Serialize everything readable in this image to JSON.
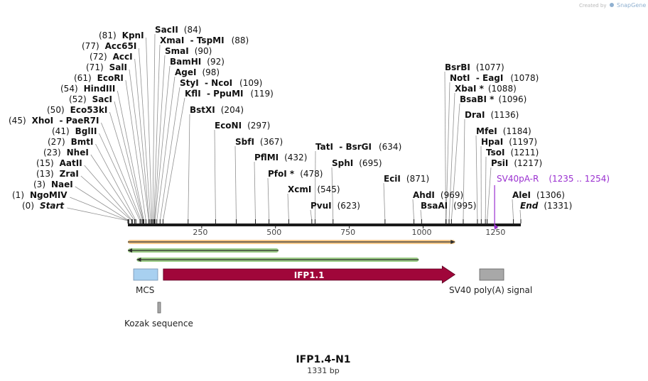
{
  "watermark": {
    "created_by": "Created by",
    "brand": "SnapGene"
  },
  "sequence_name": "IFP1.4-N1",
  "sequence_length": "1331 bp",
  "colors": {
    "backbone": "#1a1a1a",
    "orf_orange": "#f0a030",
    "orf_green": "#48a020",
    "ifp": "#a0063a",
    "mcs": "#a8d0f0",
    "polyA": "#a8a8a8",
    "kozak": "#a8a8a8",
    "primer": "#9a30d0"
  },
  "axis": {
    "min": 0,
    "max": 1331,
    "ticks": [
      {
        "value": 250,
        "label": "250"
      },
      {
        "value": 500,
        "label": "500"
      },
      {
        "value": 750,
        "label": "750"
      },
      {
        "value": 1000,
        "label": "1000"
      },
      {
        "value": 1250,
        "label": "1250"
      }
    ]
  },
  "sites": [
    {
      "name": "KpnI",
      "pos": "(81)"
    },
    {
      "name": "Acc65I",
      "pos": "(77)"
    },
    {
      "name": "AccI",
      "pos": "(72)"
    },
    {
      "name": "SalI",
      "pos": "(71)"
    },
    {
      "name": "EcoRI",
      "pos": "(61)"
    },
    {
      "name": "HindIII",
      "pos": "(54)"
    },
    {
      "name": "SacI",
      "pos": "(52)"
    },
    {
      "name": "Eco53kI",
      "pos": "(50)"
    },
    {
      "name": "XhoI  - PaeR7I",
      "pos": "(45)"
    },
    {
      "name": "BglII",
      "pos": "(41)"
    },
    {
      "name": "BmtI",
      "pos": "(27)"
    },
    {
      "name": "NheI",
      "pos": "(23)"
    },
    {
      "name": "AatII",
      "pos": "(15)"
    },
    {
      "name": "ZraI",
      "pos": "(13)"
    },
    {
      "name": "NaeI",
      "pos": "(3)"
    },
    {
      "name": "NgoMIV",
      "pos": "(1)"
    },
    {
      "name": "Start",
      "pos": "(0)"
    },
    {
      "name": "SacII",
      "pos": "(84)"
    },
    {
      "name": "XmaI  - TspMI",
      "pos": "(88)"
    },
    {
      "name": "SmaI",
      "pos": "(90)"
    },
    {
      "name": "BamHI",
      "pos": "(92)"
    },
    {
      "name": "AgeI",
      "pos": "(98)"
    },
    {
      "name": "StyI  - NcoI",
      "pos": "(109)"
    },
    {
      "name": "KflI  - PpuMI",
      "pos": "(119)"
    },
    {
      "name": "BstXI",
      "pos": "(204)"
    },
    {
      "name": "EcoNI",
      "pos": "(297)"
    },
    {
      "name": "SbfI",
      "pos": "(367)"
    },
    {
      "name": "PflMI",
      "pos": "(432)"
    },
    {
      "name": "PfoI *",
      "pos": "(478)"
    },
    {
      "name": "XcmI",
      "pos": "(545)"
    },
    {
      "name": "TatI  - BsrGI",
      "pos": "(634)"
    },
    {
      "name": "PvuI",
      "pos": "(623)"
    },
    {
      "name": "SphI",
      "pos": "(695)"
    },
    {
      "name": "EciI",
      "pos": "(871)"
    },
    {
      "name": "AhdI",
      "pos": "(969)"
    },
    {
      "name": "BsaAI",
      "pos": "(995)"
    },
    {
      "name": "BsrBI",
      "pos": "(1077)"
    },
    {
      "name": "NotI  - EagI",
      "pos": "(1078)"
    },
    {
      "name": "XbaI *",
      "pos": "(1088)"
    },
    {
      "name": "BsaBI *",
      "pos": "(1096)"
    },
    {
      "name": "DraI",
      "pos": "(1136)"
    },
    {
      "name": "MfeI",
      "pos": "(1184)"
    },
    {
      "name": "HpaI",
      "pos": "(1197)"
    },
    {
      "name": "TsoI",
      "pos": "(1211)"
    },
    {
      "name": "PsiI",
      "pos": "(1217)"
    },
    {
      "name": "AleI",
      "pos": "(1306)"
    },
    {
      "name": "End",
      "pos": "(1331)"
    }
  ],
  "primer": {
    "name": "SV40pA-R",
    "range": "(1235 .. 1254)",
    "start": 1235,
    "end": 1254
  },
  "features": {
    "ifp": {
      "label": "IFP1.1",
      "start": 120,
      "end": 1108
    },
    "mcs": {
      "label": "MCS",
      "start": 25,
      "end": 110
    },
    "polyA": {
      "label": "SV40 poly(A) signal",
      "start": 1225,
      "end": 1310
    },
    "kozak": {
      "label": "Kozak sequence",
      "start": 111,
      "end": 120
    }
  },
  "orfs": [
    {
      "start": 0,
      "end": 1108,
      "dir": "forward"
    },
    {
      "start": 0,
      "end": 510,
      "dir": "reverse"
    },
    {
      "start": 30,
      "end": 985,
      "dir": "reverse"
    }
  ]
}
